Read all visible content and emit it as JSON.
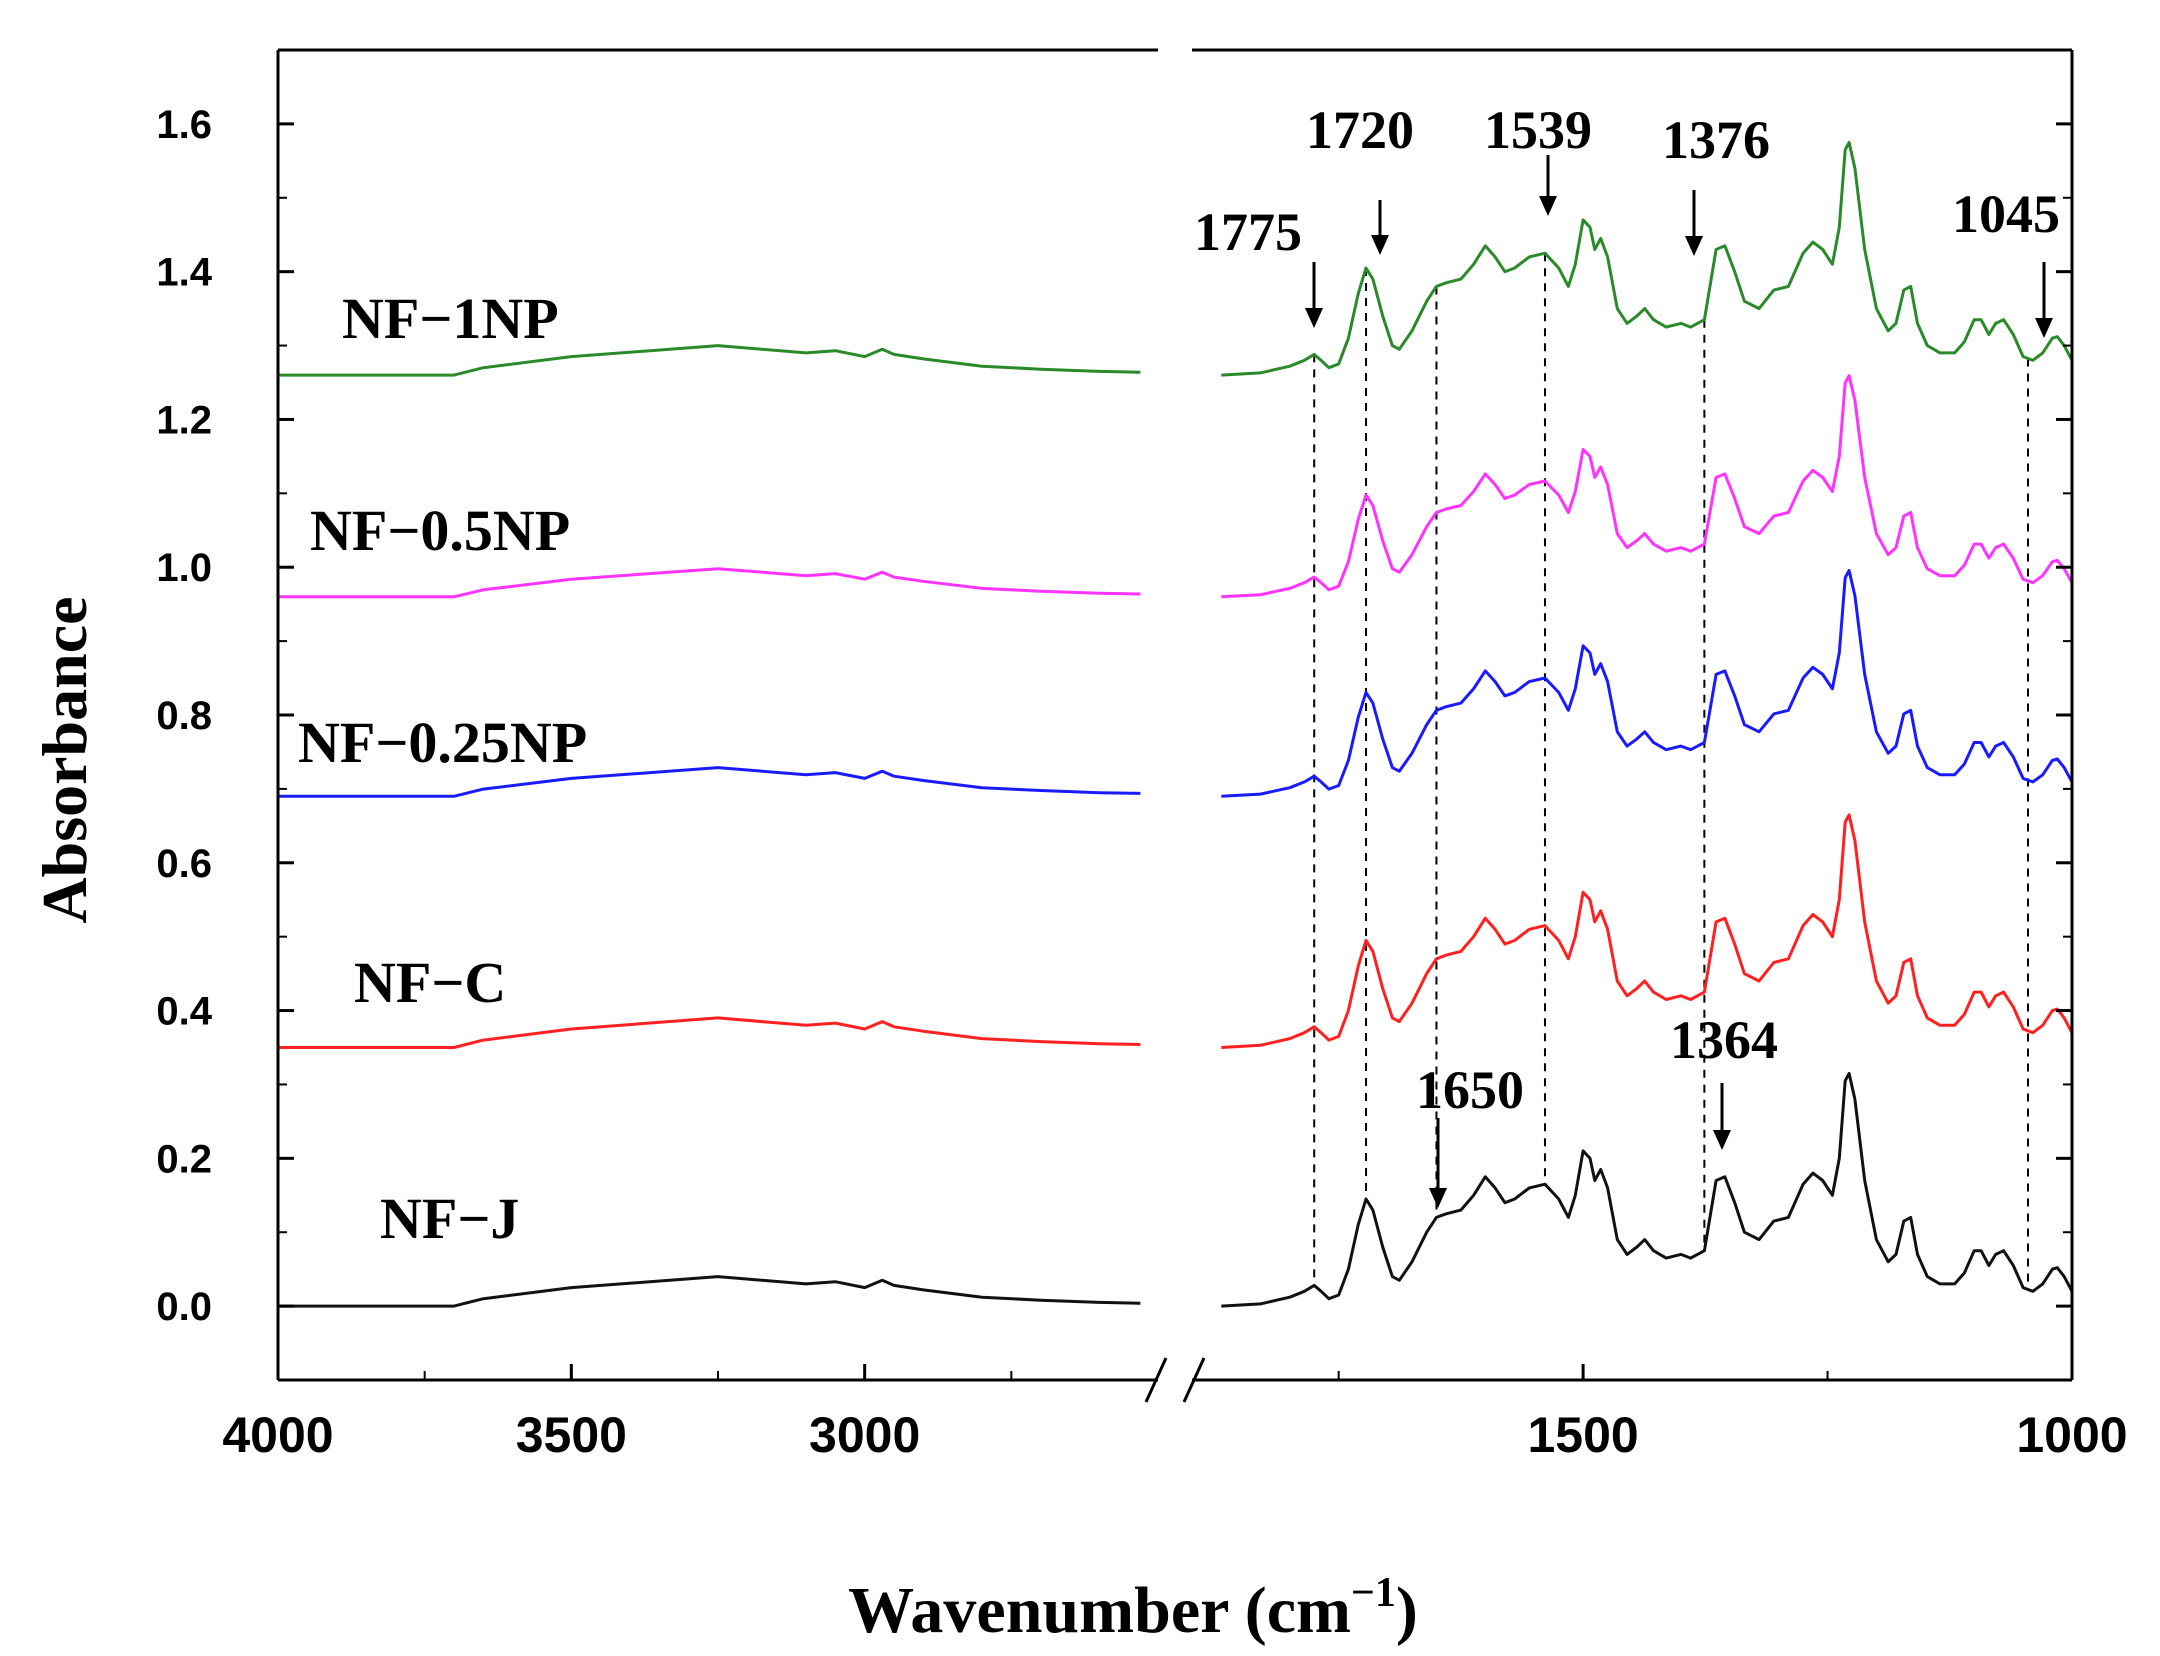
{
  "chart_data": {
    "type": "line",
    "title": "",
    "xlabel": "Wavenumber (cm",
    "xlabel_sup": "−1",
    "xlabel_close": ")",
    "ylabel": "Absorbance",
    "x_break": [
      2500,
      1900
    ],
    "xlim": [
      4000,
      1000
    ],
    "ylim": [
      -0.1,
      1.7
    ],
    "x_ticks": [
      "4000",
      "3500",
      "3000",
      "1500",
      "1000"
    ],
    "y_ticks": [
      "0.0",
      "0.2",
      "0.4",
      "0.6",
      "0.8",
      "1.0",
      "1.2",
      "1.4",
      "1.6"
    ],
    "series": [
      {
        "name": "NF−1NP",
        "color": "#2a8a2a",
        "offset": 1.26
      },
      {
        "name": "NF−0.5NP",
        "color": "#ff33ff",
        "offset": 0.96
      },
      {
        "name": "NF−0.25NP",
        "color": "#1a1aff",
        "offset": 0.69
      },
      {
        "name": "NF−C",
        "color": "#ff2020",
        "offset": 0.35
      },
      {
        "name": "NF−J",
        "color": "#111111",
        "offset": 0.0
      }
    ],
    "baseline_profile_left": [
      [
        4000,
        0.0
      ],
      [
        3700,
        0.0
      ],
      [
        3650,
        0.01
      ],
      [
        3500,
        0.025
      ],
      [
        3250,
        0.04
      ],
      [
        3100,
        0.03
      ],
      [
        3050,
        0.033
      ],
      [
        3000,
        0.025
      ],
      [
        2970,
        0.035
      ],
      [
        2950,
        0.028
      ],
      [
        2900,
        0.022
      ],
      [
        2800,
        0.012
      ],
      [
        2700,
        0.008
      ],
      [
        2600,
        0.005
      ],
      [
        2530,
        0.004
      ]
    ],
    "absorbance_profile_right": [
      [
        1870,
        0.0
      ],
      [
        1830,
        0.003
      ],
      [
        1800,
        0.012
      ],
      [
        1785,
        0.02
      ],
      [
        1775,
        0.028
      ],
      [
        1768,
        0.02
      ],
      [
        1760,
        0.01
      ],
      [
        1750,
        0.015
      ],
      [
        1740,
        0.05
      ],
      [
        1730,
        0.11
      ],
      [
        1722,
        0.145
      ],
      [
        1715,
        0.13
      ],
      [
        1705,
        0.08
      ],
      [
        1695,
        0.04
      ],
      [
        1688,
        0.035
      ],
      [
        1675,
        0.06
      ],
      [
        1660,
        0.1
      ],
      [
        1650,
        0.12
      ],
      [
        1640,
        0.125
      ],
      [
        1625,
        0.13
      ],
      [
        1612,
        0.15
      ],
      [
        1600,
        0.175
      ],
      [
        1590,
        0.16
      ],
      [
        1580,
        0.14
      ],
      [
        1570,
        0.145
      ],
      [
        1555,
        0.16
      ],
      [
        1539,
        0.165
      ],
      [
        1525,
        0.145
      ],
      [
        1515,
        0.12
      ],
      [
        1508,
        0.15
      ],
      [
        1500,
        0.21
      ],
      [
        1493,
        0.2
      ],
      [
        1488,
        0.17
      ],
      [
        1482,
        0.185
      ],
      [
        1475,
        0.16
      ],
      [
        1465,
        0.09
      ],
      [
        1455,
        0.07
      ],
      [
        1445,
        0.08
      ],
      [
        1437,
        0.09
      ],
      [
        1428,
        0.075
      ],
      [
        1415,
        0.065
      ],
      [
        1400,
        0.07
      ],
      [
        1390,
        0.065
      ],
      [
        1376,
        0.075
      ],
      [
        1364,
        0.17
      ],
      [
        1355,
        0.175
      ],
      [
        1345,
        0.14
      ],
      [
        1335,
        0.1
      ],
      [
        1320,
        0.09
      ],
      [
        1305,
        0.115
      ],
      [
        1290,
        0.12
      ],
      [
        1275,
        0.165
      ],
      [
        1265,
        0.18
      ],
      [
        1255,
        0.17
      ],
      [
        1245,
        0.15
      ],
      [
        1238,
        0.2
      ],
      [
        1232,
        0.305
      ],
      [
        1228,
        0.315
      ],
      [
        1222,
        0.28
      ],
      [
        1212,
        0.17
      ],
      [
        1200,
        0.09
      ],
      [
        1188,
        0.06
      ],
      [
        1180,
        0.07
      ],
      [
        1172,
        0.115
      ],
      [
        1165,
        0.12
      ],
      [
        1158,
        0.07
      ],
      [
        1148,
        0.04
      ],
      [
        1135,
        0.03
      ],
      [
        1120,
        0.03
      ],
      [
        1110,
        0.045
      ],
      [
        1100,
        0.075
      ],
      [
        1093,
        0.075
      ],
      [
        1085,
        0.055
      ],
      [
        1078,
        0.07
      ],
      [
        1070,
        0.075
      ],
      [
        1060,
        0.055
      ],
      [
        1050,
        0.025
      ],
      [
        1040,
        0.02
      ],
      [
        1030,
        0.03
      ],
      [
        1020,
        0.05
      ],
      [
        1015,
        0.052
      ],
      [
        1008,
        0.04
      ],
      [
        1000,
        0.02
      ]
    ],
    "peak_annotations": [
      {
        "label": "1775",
        "x": 1775,
        "series": "NF−1NP"
      },
      {
        "label": "1720",
        "x": 1720,
        "series": "NF−1NP"
      },
      {
        "label": "1539",
        "x": 1539,
        "series": "NF−1NP"
      },
      {
        "label": "1376",
        "x": 1376,
        "series": "NF−1NP"
      },
      {
        "label": "1045",
        "x": 1045,
        "series": "NF−1NP"
      },
      {
        "label": "1650",
        "x": 1650,
        "series": "NF−J"
      },
      {
        "label": "1364",
        "x": 1364,
        "series": "NF−J"
      }
    ],
    "dashed_guides": [
      1775,
      1722,
      1650,
      1539,
      1376,
      1045
    ]
  }
}
